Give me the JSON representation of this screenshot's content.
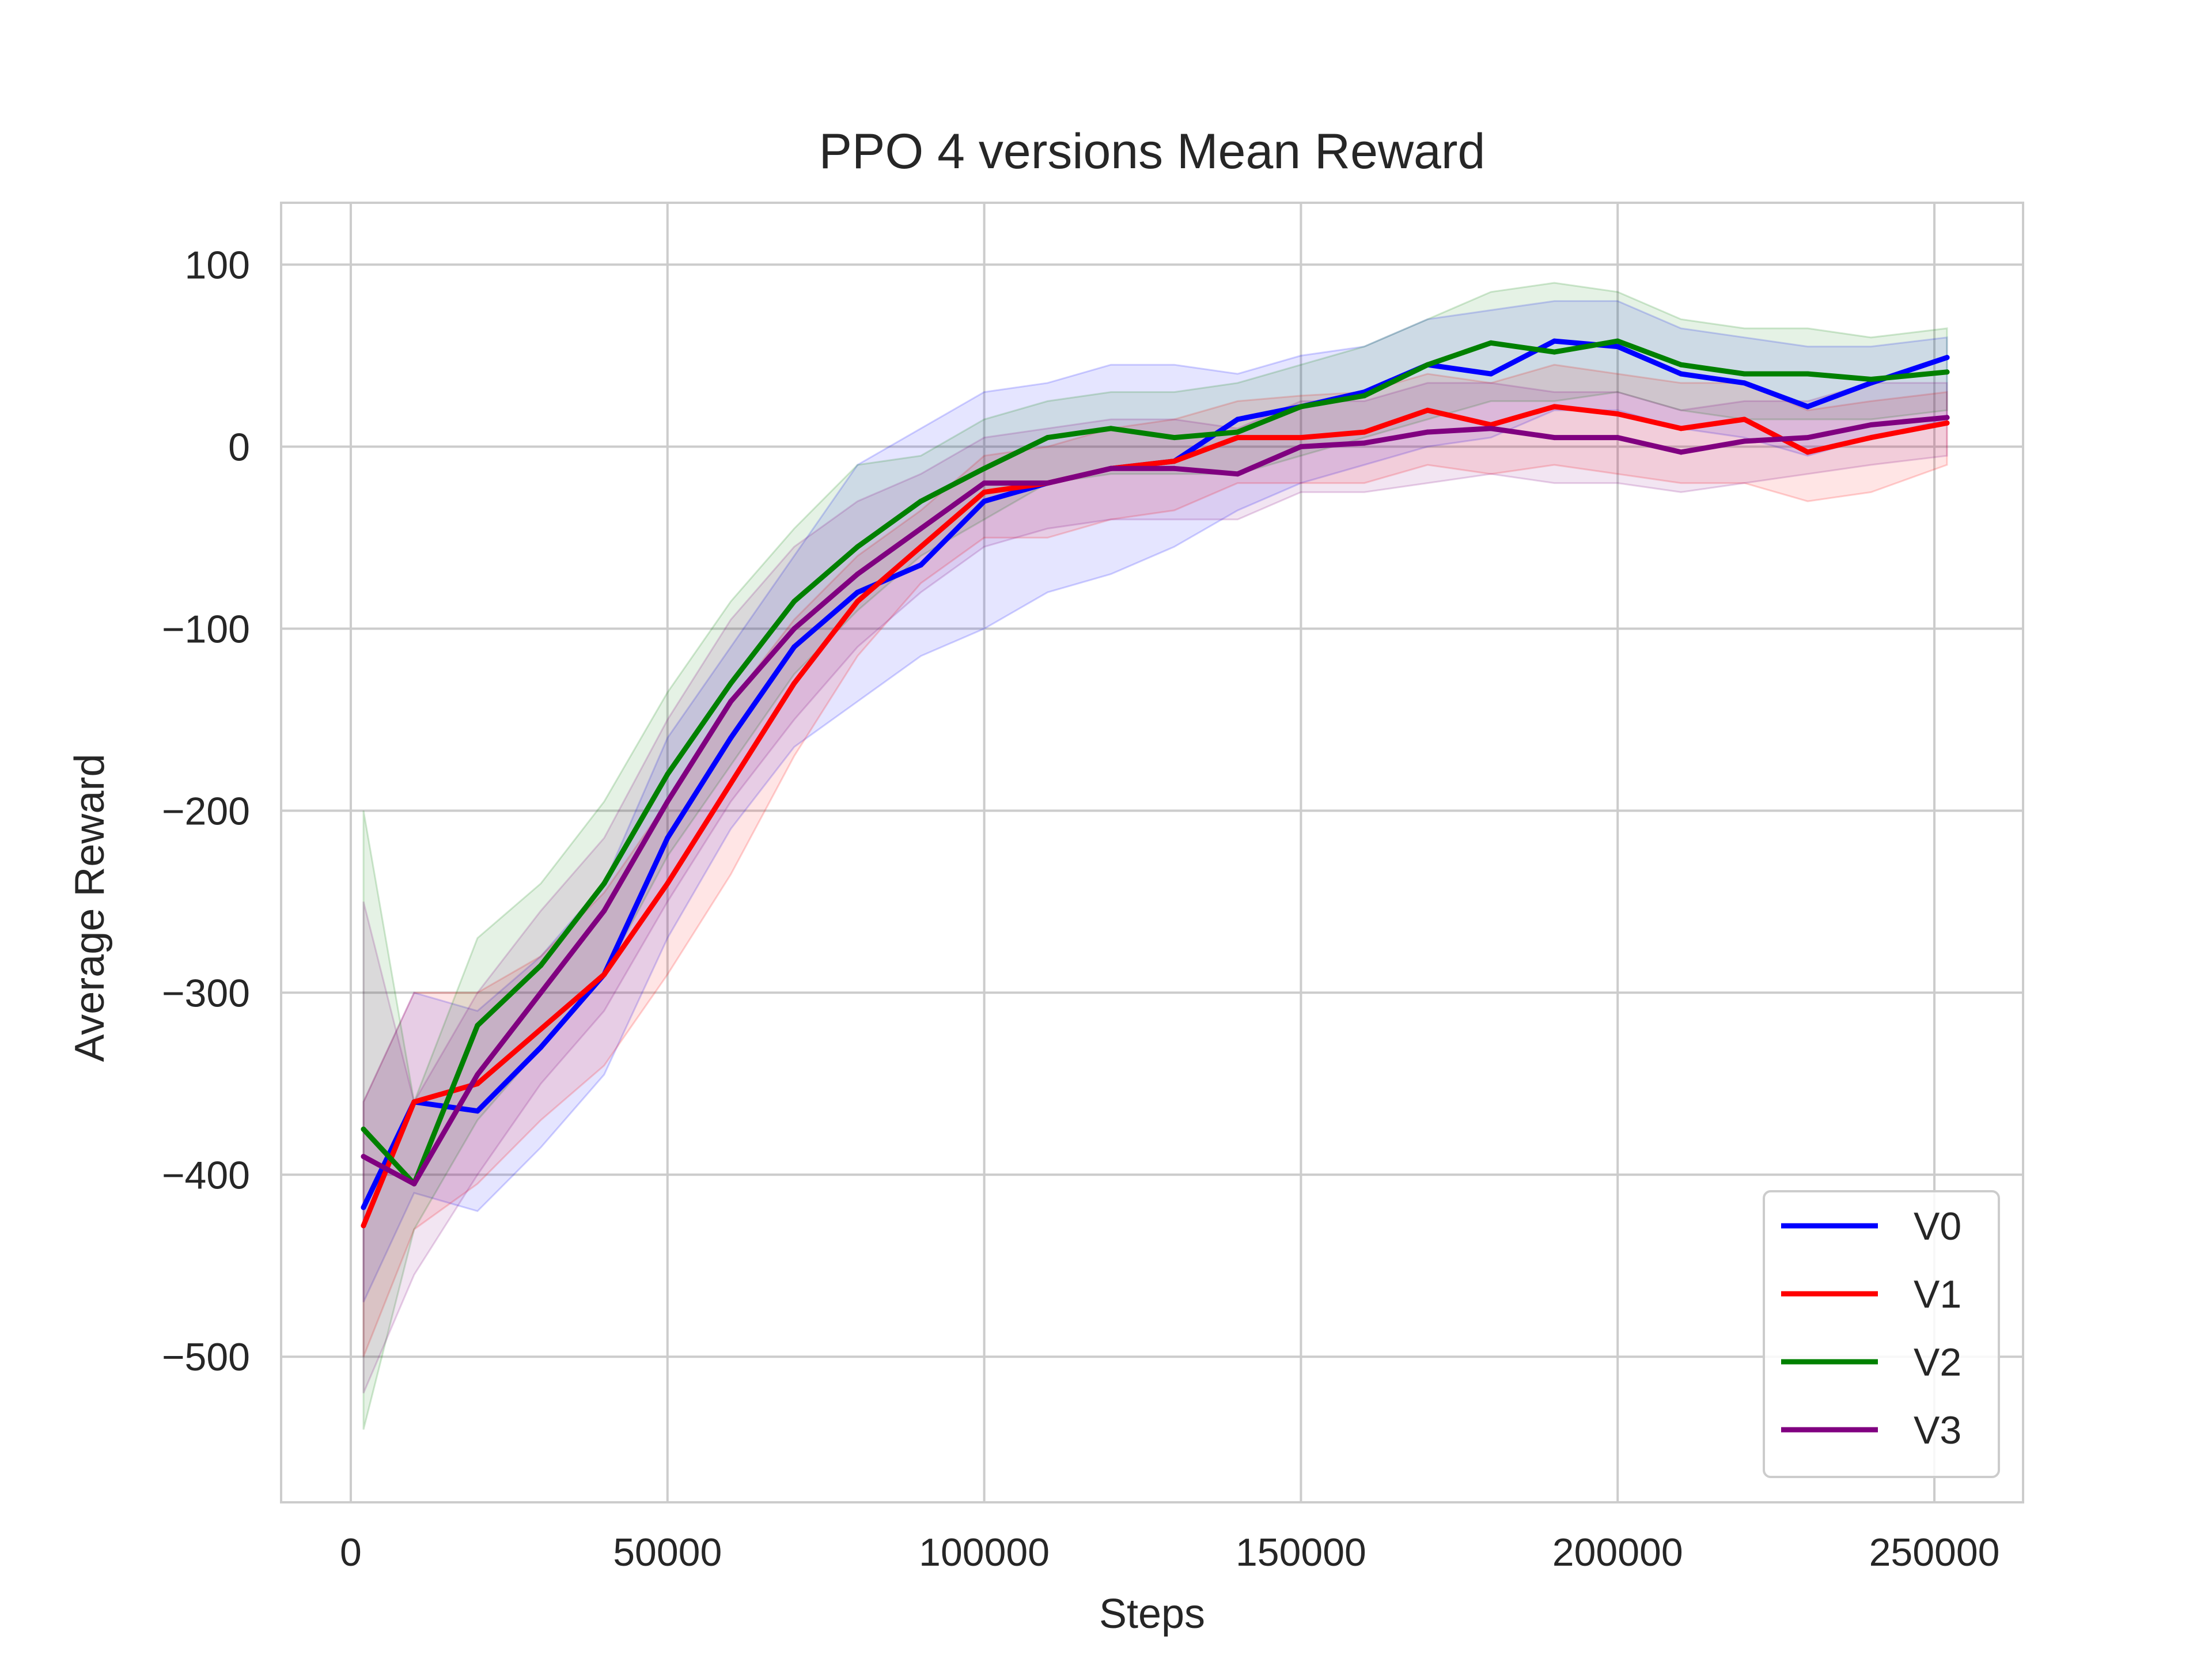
{
  "chart_data": {
    "type": "line",
    "title": "PPO 4 versions Mean Reward",
    "xlabel": "Steps",
    "ylabel": "Average Reward",
    "xlim": [
      -11000,
      264000
    ],
    "ylim": [
      -580,
      134
    ],
    "xticks": [
      0,
      50000,
      100000,
      150000,
      200000,
      250000
    ],
    "xtick_labels": [
      "0",
      "50000",
      "100000",
      "150000",
      "200000",
      "250000"
    ],
    "yticks": [
      100,
      0,
      -100,
      -200,
      -300,
      -400,
      -500
    ],
    "ytick_labels": [
      "100",
      "0",
      "−100",
      "−200",
      "−300",
      "−400",
      "−500"
    ],
    "grid": true,
    "legend_position": "lower-right",
    "x": [
      2000,
      10000,
      20000,
      30000,
      40000,
      50000,
      60000,
      70000,
      80000,
      90000,
      100000,
      110000,
      120000,
      130000,
      140000,
      150000,
      160000,
      170000,
      180000,
      190000,
      200000,
      210000,
      220000,
      230000,
      240000,
      252000
    ],
    "series": [
      {
        "name": "V0",
        "color": "#0000ff",
        "values": [
          -418,
          -360,
          -365,
          -330,
          -290,
          -215,
          -160,
          -110,
          -80,
          -65,
          -30,
          -20,
          -12,
          -8,
          15,
          22,
          30,
          45,
          40,
          58,
          55,
          40,
          35,
          22,
          35,
          49
        ],
        "lower": [
          -470,
          -410,
          -420,
          -385,
          -345,
          -270,
          -210,
          -165,
          -140,
          -115,
          -100,
          -80,
          -70,
          -55,
          -35,
          -20,
          -10,
          0,
          5,
          20,
          20,
          10,
          5,
          -5,
          5,
          15
        ],
        "upper": [
          -360,
          -300,
          -310,
          -280,
          -240,
          -160,
          -110,
          -60,
          -10,
          10,
          30,
          35,
          45,
          45,
          40,
          50,
          55,
          70,
          75,
          80,
          80,
          65,
          60,
          55,
          55,
          60
        ]
      },
      {
        "name": "V1",
        "color": "#ff0000",
        "values": [
          -428,
          -360,
          -350,
          -320,
          -290,
          -240,
          -185,
          -130,
          -85,
          -55,
          -25,
          -20,
          -12,
          -8,
          5,
          5,
          8,
          20,
          12,
          22,
          18,
          10,
          15,
          -3,
          5,
          13
        ],
        "lower": [
          -500,
          -430,
          -405,
          -370,
          -340,
          -290,
          -235,
          -170,
          -115,
          -75,
          -50,
          -50,
          -40,
          -35,
          -20,
          -20,
          -20,
          -10,
          -15,
          -10,
          -15,
          -20,
          -20,
          -30,
          -25,
          -10
        ],
        "upper": [
          -360,
          -300,
          -300,
          -280,
          -245,
          -195,
          -140,
          -95,
          -60,
          -35,
          -5,
          0,
          10,
          15,
          25,
          28,
          30,
          40,
          35,
          45,
          40,
          35,
          35,
          20,
          25,
          30
        ]
      },
      {
        "name": "V2",
        "color": "#008000",
        "values": [
          -375,
          -405,
          -318,
          -285,
          -240,
          -180,
          -130,
          -85,
          -55,
          -30,
          -12,
          5,
          10,
          5,
          8,
          22,
          28,
          45,
          57,
          52,
          58,
          45,
          40,
          40,
          37,
          41
        ],
        "lower": [
          -540,
          -430,
          -370,
          -330,
          -290,
          -225,
          -175,
          -125,
          -90,
          -60,
          -40,
          -20,
          -15,
          -15,
          -15,
          -5,
          5,
          15,
          25,
          25,
          30,
          20,
          15,
          15,
          15,
          20
        ],
        "upper": [
          -200,
          -360,
          -270,
          -240,
          -195,
          -135,
          -85,
          -45,
          -10,
          -5,
          15,
          25,
          30,
          30,
          35,
          45,
          55,
          70,
          85,
          90,
          85,
          70,
          65,
          65,
          60,
          65
        ]
      },
      {
        "name": "V3",
        "color": "#800080",
        "values": [
          -390,
          -405,
          -345,
          -300,
          -255,
          -195,
          -140,
          -100,
          -70,
          -45,
          -20,
          -20,
          -12,
          -12,
          -15,
          0,
          2,
          8,
          10,
          5,
          5,
          -3,
          3,
          5,
          12,
          16
        ],
        "lower": [
          -520,
          -455,
          -400,
          -350,
          -310,
          -250,
          -195,
          -150,
          -110,
          -80,
          -55,
          -45,
          -40,
          -40,
          -40,
          -25,
          -25,
          -20,
          -15,
          -20,
          -20,
          -25,
          -20,
          -15,
          -10,
          -5
        ],
        "upper": [
          -250,
          -360,
          -300,
          -255,
          -215,
          -150,
          -95,
          -55,
          -30,
          -15,
          5,
          10,
          15,
          15,
          10,
          25,
          25,
          35,
          35,
          30,
          30,
          20,
          25,
          25,
          35,
          35
        ]
      }
    ]
  }
}
